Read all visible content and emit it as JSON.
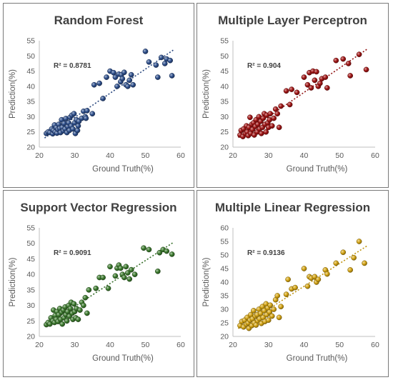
{
  "chart_data": [
    {
      "type": "scatter",
      "title": "Random Forest",
      "xlabel": "Ground Truth(%)",
      "ylabel": "Prediction(%)",
      "annotation": "R² = 0.8781",
      "xlim": [
        20,
        60
      ],
      "ylim": [
        20,
        55
      ],
      "xticks": [
        20,
        30,
        40,
        50,
        60
      ],
      "yticks": [
        20,
        25,
        30,
        35,
        40,
        45,
        50,
        55
      ],
      "color": "#2e4f8c",
      "trendline": true,
      "points": [
        [
          22,
          24.5
        ],
        [
          22.5,
          25
        ],
        [
          23,
          24.8
        ],
        [
          23.5,
          26
        ],
        [
          23.8,
          24.4
        ],
        [
          24,
          25.5
        ],
        [
          24.3,
          27.3
        ],
        [
          24.5,
          25
        ],
        [
          24.8,
          26.4
        ],
        [
          25,
          24.6
        ],
        [
          25.3,
          25.8
        ],
        [
          25.5,
          27.5
        ],
        [
          25.8,
          26.2
        ],
        [
          26,
          24.8
        ],
        [
          26.3,
          29
        ],
        [
          26.5,
          26.5
        ],
        [
          26.8,
          25.4
        ],
        [
          27,
          27.8
        ],
        [
          27.3,
          26
        ],
        [
          27.5,
          29.4
        ],
        [
          27.8,
          24.8
        ],
        [
          28,
          26.8
        ],
        [
          28.3,
          28
        ],
        [
          28.5,
          25.5
        ],
        [
          28.7,
          29.8
        ],
        [
          29,
          27
        ],
        [
          29.2,
          30.5
        ],
        [
          29.5,
          26
        ],
        [
          29.8,
          31
        ],
        [
          30,
          28
        ],
        [
          30.2,
          24.5
        ],
        [
          30.5,
          29
        ],
        [
          30.8,
          25.5
        ],
        [
          31,
          27
        ],
        [
          31.2,
          28.5
        ],
        [
          32,
          29.5
        ],
        [
          32.5,
          31.8
        ],
        [
          33,
          30
        ],
        [
          33.2,
          29.5
        ],
        [
          33.5,
          32
        ],
        [
          35,
          31
        ],
        [
          35.5,
          40.5
        ],
        [
          37,
          41
        ],
        [
          38,
          36
        ],
        [
          39,
          43
        ],
        [
          40,
          45
        ],
        [
          41,
          44.5
        ],
        [
          41.5,
          43
        ],
        [
          42,
          40
        ],
        [
          42.5,
          44
        ],
        [
          43,
          41.5
        ],
        [
          43.2,
          43.8
        ],
        [
          43.5,
          42.5
        ],
        [
          44,
          44.6
        ],
        [
          44.5,
          40.5
        ],
        [
          45,
          40
        ],
        [
          45.5,
          42
        ],
        [
          46,
          43.8
        ],
        [
          46.5,
          40.5
        ],
        [
          50,
          51.5
        ],
        [
          51,
          48
        ],
        [
          53,
          47
        ],
        [
          53.5,
          43
        ],
        [
          54.5,
          49.5
        ],
        [
          55.5,
          47.5
        ],
        [
          56,
          49
        ],
        [
          57,
          48.5
        ],
        [
          57.5,
          43.5
        ]
      ]
    },
    {
      "type": "scatter",
      "title": "Multiple Layer Perceptron",
      "xlabel": "Ground Truth(%)",
      "ylabel": "Prediction(%)",
      "annotation": "R² = 0.904",
      "xlim": [
        20,
        60
      ],
      "ylim": [
        20,
        55
      ],
      "xticks": [
        20,
        30,
        40,
        50,
        60
      ],
      "yticks": [
        20,
        25,
        30,
        35,
        40,
        45,
        50,
        55
      ],
      "color": "#a01414",
      "trendline": true,
      "points": [
        [
          22,
          24
        ],
        [
          22.3,
          25.5
        ],
        [
          22.8,
          23.5
        ],
        [
          23,
          26
        ],
        [
          23.5,
          24.5
        ],
        [
          23.8,
          27
        ],
        [
          24,
          25
        ],
        [
          24.3,
          23.8
        ],
        [
          24.5,
          26.5
        ],
        [
          24.8,
          29.8
        ],
        [
          25,
          24.5
        ],
        [
          25.3,
          27.5
        ],
        [
          25.5,
          25.8
        ],
        [
          25.8,
          28
        ],
        [
          26,
          24
        ],
        [
          26.3,
          26.8
        ],
        [
          26.5,
          29
        ],
        [
          26.8,
          25
        ],
        [
          27,
          27.5
        ],
        [
          27.3,
          30
        ],
        [
          27.5,
          26
        ],
        [
          27.8,
          28.5
        ],
        [
          28,
          24.5
        ],
        [
          28.3,
          26.5
        ],
        [
          28.5,
          29.5
        ],
        [
          28.8,
          31
        ],
        [
          29,
          27.5
        ],
        [
          29.3,
          25
        ],
        [
          29.5,
          30.5
        ],
        [
          29.8,
          28
        ],
        [
          30,
          26.5
        ],
        [
          30.3,
          29
        ],
        [
          30.5,
          31
        ],
        [
          31,
          27
        ],
        [
          31.5,
          29.5
        ],
        [
          32,
          32.5
        ],
        [
          32.5,
          31
        ],
        [
          33,
          26.5
        ],
        [
          33.5,
          33.5
        ],
        [
          35,
          38.5
        ],
        [
          36,
          34
        ],
        [
          36.5,
          39
        ],
        [
          38,
          38
        ],
        [
          40,
          43
        ],
        [
          41,
          40.5
        ],
        [
          41.5,
          44.5
        ],
        [
          42,
          39.5
        ],
        [
          42.5,
          45
        ],
        [
          43,
          42
        ],
        [
          43.5,
          44.8
        ],
        [
          44,
          40
        ],
        [
          44.5,
          41
        ],
        [
          45,
          42.5
        ],
        [
          46,
          43
        ],
        [
          46.5,
          39.5
        ],
        [
          49,
          48.5
        ],
        [
          51,
          49
        ],
        [
          52.5,
          47.5
        ],
        [
          53,
          43.5
        ],
        [
          55.5,
          50.5
        ],
        [
          57.5,
          45.5
        ]
      ]
    },
    {
      "type": "scatter",
      "title": "Support Vector Regression",
      "xlabel": "Ground Truth(%)",
      "ylabel": "Prediction(%)",
      "annotation": "R² = 0.9091",
      "xlim": [
        20,
        60
      ],
      "ylim": [
        20,
        55
      ],
      "xticks": [
        20,
        30,
        40,
        50,
        60
      ],
      "yticks": [
        20,
        25,
        30,
        35,
        40,
        45,
        50,
        55
      ],
      "color": "#3c7a2e",
      "trendline": true,
      "points": [
        [
          22,
          23.8
        ],
        [
          22.5,
          24.5
        ],
        [
          23,
          24
        ],
        [
          23.3,
          26
        ],
        [
          23.8,
          25
        ],
        [
          24,
          28.5
        ],
        [
          24.3,
          24.5
        ],
        [
          24.5,
          26.8
        ],
        [
          24.8,
          25.5
        ],
        [
          25,
          28
        ],
        [
          25.3,
          24.8
        ],
        [
          25.5,
          27
        ],
        [
          25.8,
          29
        ],
        [
          26,
          25.5
        ],
        [
          26.3,
          27.8
        ],
        [
          26.5,
          24
        ],
        [
          26.8,
          28.5
        ],
        [
          27,
          26
        ],
        [
          27.3,
          29.5
        ],
        [
          27.5,
          27
        ],
        [
          27.8,
          25
        ],
        [
          28,
          28
        ],
        [
          28.3,
          30
        ],
        [
          28.5,
          26.5
        ],
        [
          28.8,
          29
        ],
        [
          29,
          31
        ],
        [
          29.3,
          27.5
        ],
        [
          29.5,
          25.5
        ],
        [
          29.8,
          30.5
        ],
        [
          30,
          28
        ],
        [
          30.3,
          26
        ],
        [
          30.5,
          29
        ],
        [
          31,
          25.5
        ],
        [
          31.5,
          28.5
        ],
        [
          32,
          31
        ],
        [
          32.5,
          30
        ],
        [
          33,
          32.5
        ],
        [
          33.5,
          27.5
        ],
        [
          34,
          35
        ],
        [
          36,
          35.5
        ],
        [
          37,
          39
        ],
        [
          38,
          39
        ],
        [
          39.5,
          35.5
        ],
        [
          40,
          42.5
        ],
        [
          41.5,
          39.5
        ],
        [
          42,
          42
        ],
        [
          42.5,
          43
        ],
        [
          43,
          42
        ],
        [
          43.5,
          40
        ],
        [
          44,
          39
        ],
        [
          44.5,
          42.5
        ],
        [
          45,
          40.5
        ],
        [
          45.5,
          38.5
        ],
        [
          46,
          41.5
        ],
        [
          47,
          40
        ],
        [
          49.5,
          48.5
        ],
        [
          51,
          48
        ],
        [
          53.5,
          41
        ],
        [
          54,
          47
        ],
        [
          55,
          48
        ],
        [
          56,
          47.5
        ],
        [
          57.5,
          46.5
        ]
      ]
    },
    {
      "type": "scatter",
      "title": "Multiple Linear Regression",
      "xlabel": "Ground Truth(%)",
      "ylabel": "Prediction(%)",
      "annotation": "R² = 0.9136",
      "xlim": [
        20,
        60
      ],
      "ylim": [
        20,
        60
      ],
      "xticks": [
        20,
        30,
        40,
        50,
        60
      ],
      "yticks": [
        20,
        25,
        30,
        35,
        40,
        45,
        50,
        55,
        60
      ],
      "color": "#d4a414",
      "trendline": true,
      "points": [
        [
          22,
          24
        ],
        [
          22.5,
          25.5
        ],
        [
          23,
          23.5
        ],
        [
          23.3,
          26
        ],
        [
          23.8,
          24.5
        ],
        [
          24,
          27
        ],
        [
          24.3,
          25
        ],
        [
          24.5,
          23
        ],
        [
          24.8,
          26
        ],
        [
          25,
          28
        ],
        [
          25.3,
          24
        ],
        [
          25.5,
          26.5
        ],
        [
          25.8,
          29.5
        ],
        [
          26,
          25
        ],
        [
          26.3,
          27.5
        ],
        [
          26.5,
          24.2
        ],
        [
          26.8,
          28
        ],
        [
          27,
          25.8
        ],
        [
          27.3,
          30
        ],
        [
          27.5,
          26.5
        ],
        [
          27.8,
          28.5
        ],
        [
          28,
          24.8
        ],
        [
          28.3,
          31
        ],
        [
          28.5,
          27
        ],
        [
          28.8,
          29.5
        ],
        [
          29,
          25.5
        ],
        [
          29.3,
          32
        ],
        [
          29.5,
          28
        ],
        [
          29.8,
          30.5
        ],
        [
          30,
          26
        ],
        [
          30.3,
          29
        ],
        [
          30.5,
          31.5
        ],
        [
          31,
          27.5
        ],
        [
          31.5,
          30
        ],
        [
          32,
          33.5
        ],
        [
          32.5,
          35
        ],
        [
          33,
          27
        ],
        [
          33.5,
          31
        ],
        [
          35,
          35.5
        ],
        [
          35.5,
          41
        ],
        [
          36.5,
          37.5
        ],
        [
          37.5,
          38
        ],
        [
          40,
          45
        ],
        [
          41,
          38.5
        ],
        [
          41.5,
          42
        ],
        [
          42,
          41.5
        ],
        [
          43,
          42
        ],
        [
          43.5,
          40
        ],
        [
          44,
          41
        ],
        [
          46,
          44.5
        ],
        [
          46.5,
          43
        ],
        [
          49,
          47
        ],
        [
          51,
          51
        ],
        [
          53,
          44.5
        ],
        [
          54,
          49
        ],
        [
          55.5,
          55
        ],
        [
          57,
          47
        ]
      ]
    }
  ]
}
